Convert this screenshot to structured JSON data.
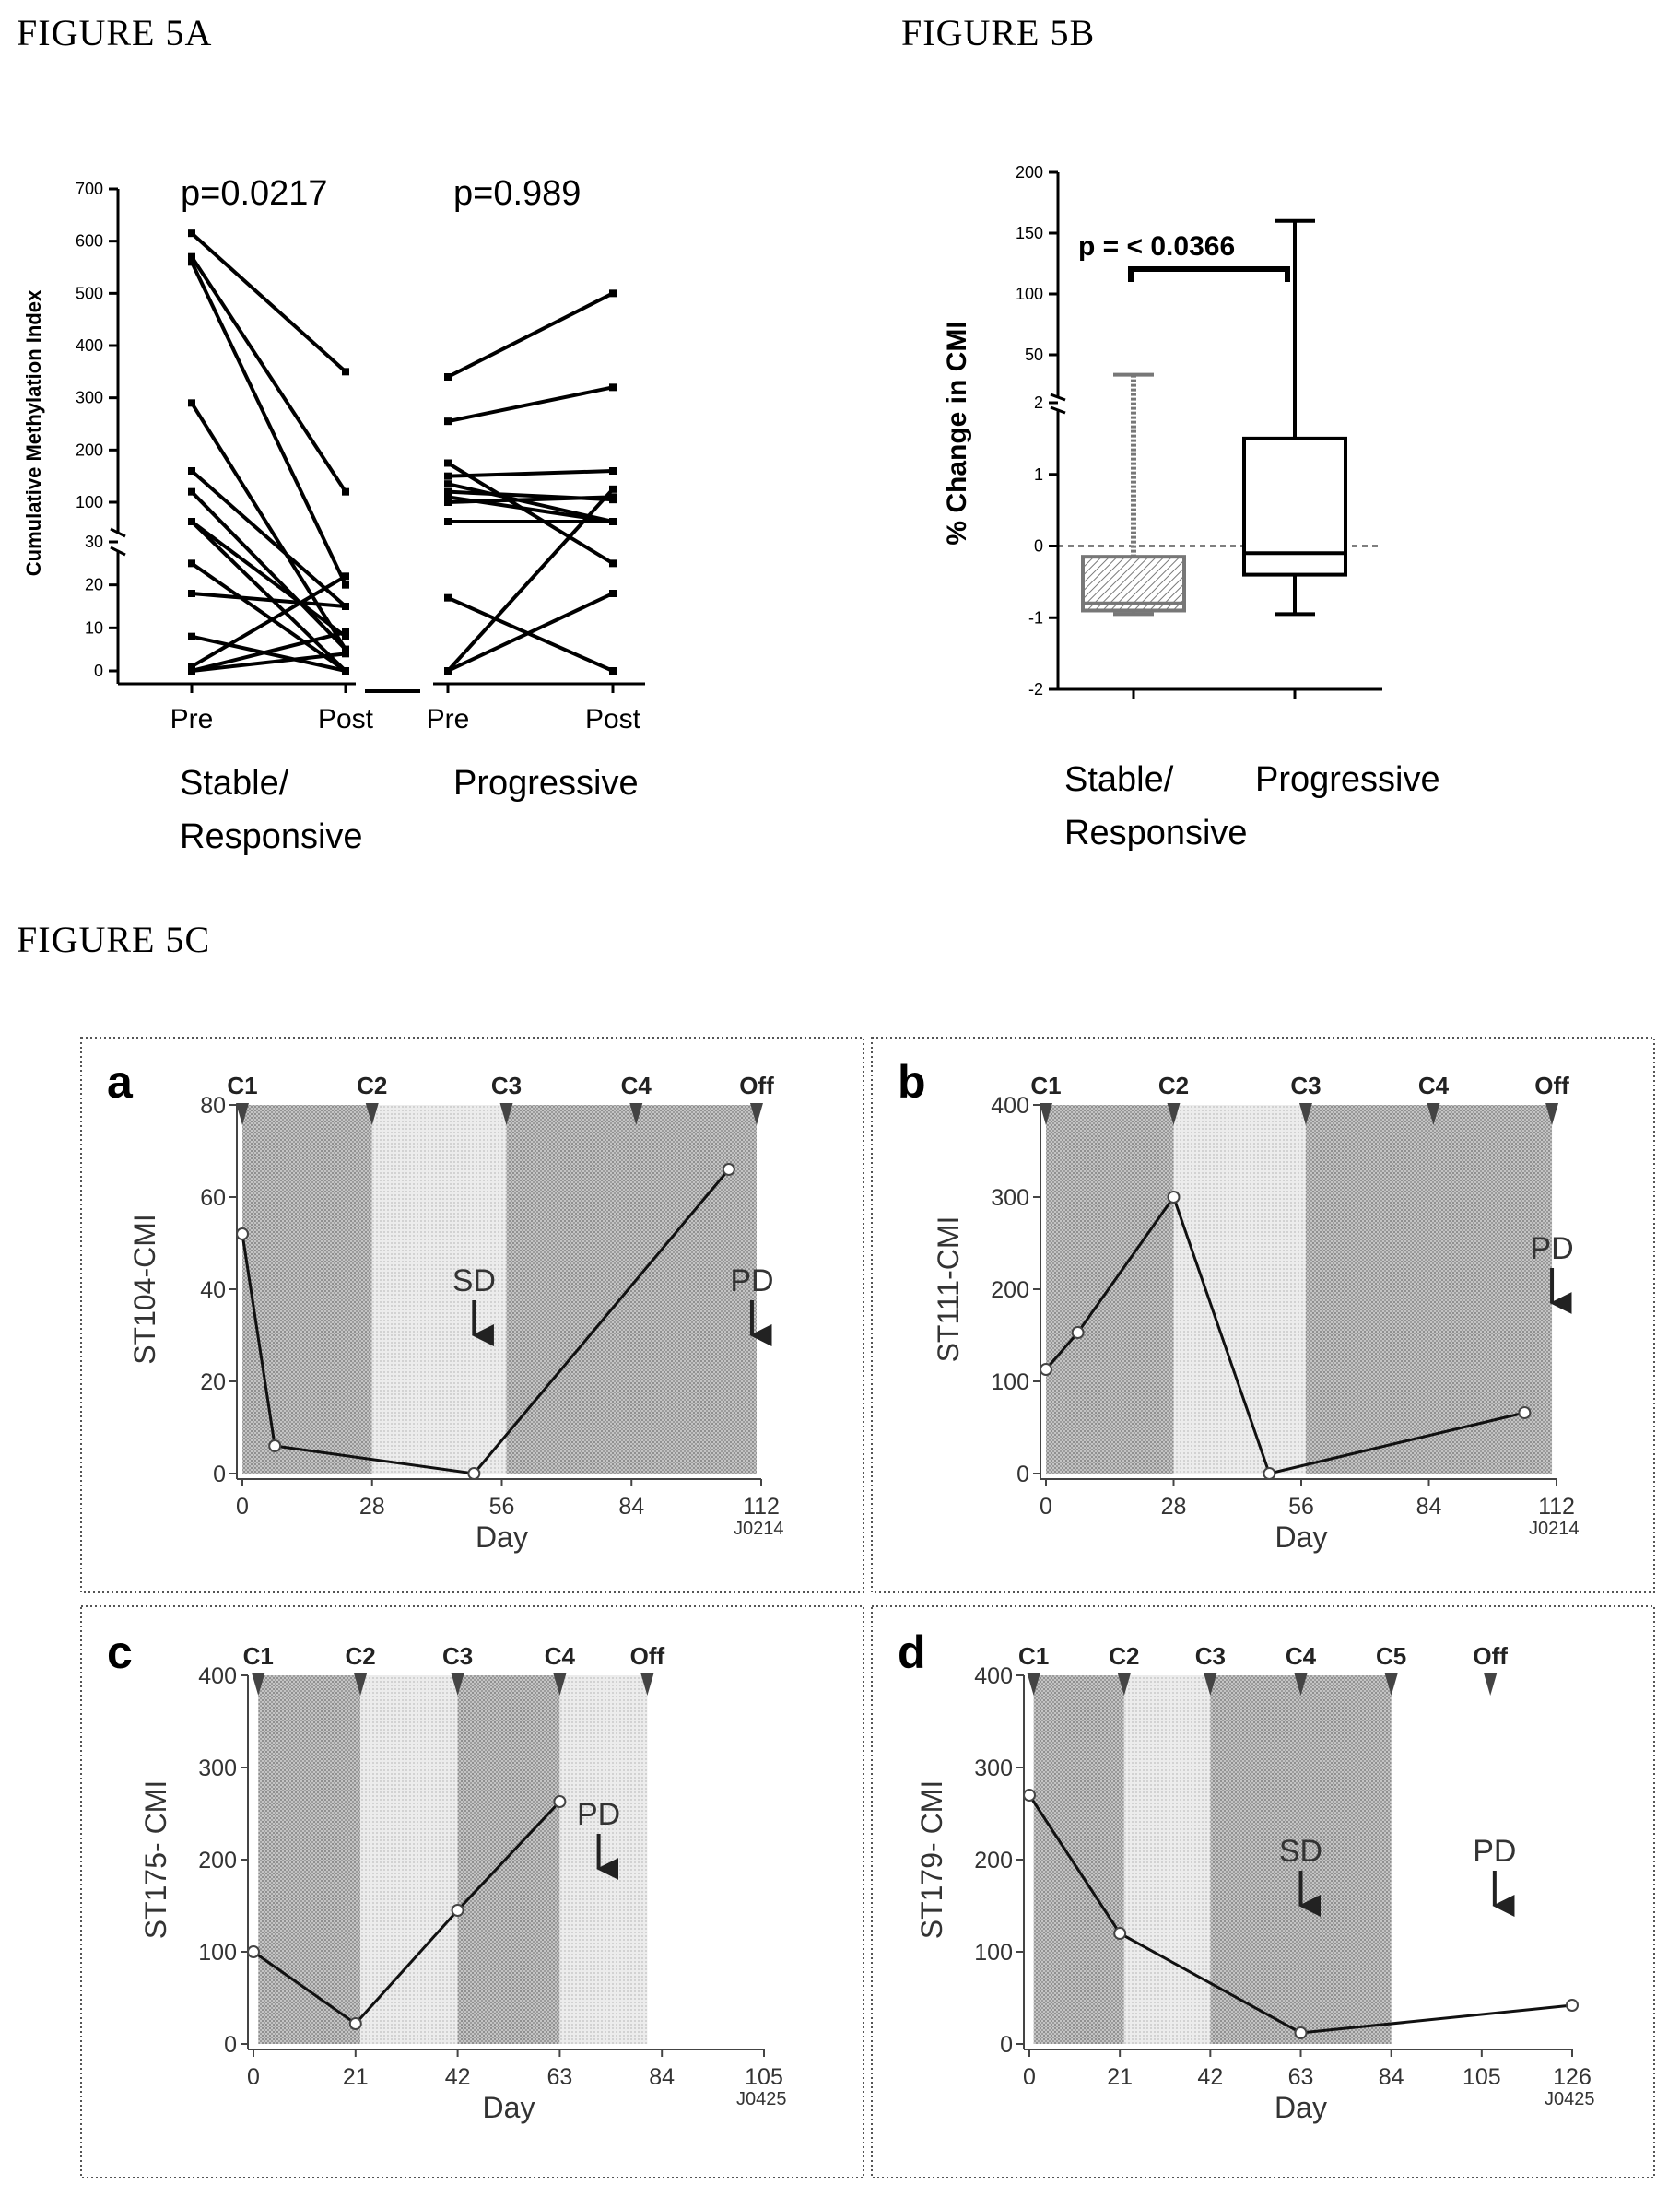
{
  "figure_labels": {
    "a": "FIGURE 5A",
    "b": "FIGURE 5B",
    "c": "FIGURE 5C"
  },
  "chart_data": [
    {
      "id": "fig5a",
      "type": "line",
      "ylabel": "Cumulative Methylation Index",
      "axis_break": "between 30 and 100 (lower segment 0-30, upper segment 100-700)",
      "y_ticks": [
        "0",
        "10",
        "20",
        "30",
        "100",
        "200",
        "300",
        "400",
        "500",
        "600",
        "700"
      ],
      "x_tick_labels": [
        "Pre",
        "Post",
        "Pre",
        "Post"
      ],
      "group_labels": [
        [
          "Stable/",
          "Responsive"
        ],
        [
          "Progressive"
        ]
      ],
      "pvalues": [
        "p=0.0217",
        "p=0.989"
      ],
      "groups": [
        {
          "name": "Stable/Responsive",
          "pairs": [
            [
              615,
              350
            ],
            [
              570,
              120
            ],
            [
              560,
              20
            ],
            [
              290,
              5
            ],
            [
              160,
              15
            ],
            [
              120,
              5
            ],
            [
              55,
              0
            ],
            [
              45,
              8
            ],
            [
              25,
              0
            ],
            [
              18,
              15
            ],
            [
              8,
              0
            ],
            [
              1,
              22
            ],
            [
              0,
              9
            ],
            [
              0,
              4
            ]
          ]
        },
        {
          "name": "Progressive",
          "pairs": [
            [
              340,
              500
            ],
            [
              255,
              320
            ],
            [
              175,
              25
            ],
            [
              150,
              160
            ],
            [
              135,
              90
            ],
            [
              120,
              105
            ],
            [
              110,
              80
            ],
            [
              100,
              110
            ],
            [
              95,
              60
            ],
            [
              85,
              55
            ],
            [
              75,
              65
            ],
            [
              17,
              0
            ],
            [
              0,
              125
            ],
            [
              0,
              18
            ]
          ]
        }
      ]
    },
    {
      "id": "fig5b",
      "type": "box",
      "ylabel": "% Change in CMI",
      "y_ticks": [
        "-2",
        "-1",
        "0",
        "1",
        "2",
        "50",
        "100",
        "150",
        "200"
      ],
      "axis_break": "between 2 and 50",
      "categories": [
        [
          "Stable/",
          "Responsive"
        ],
        [
          "Progressive"
        ]
      ],
      "pvalue": "p = < 0.0366",
      "boxes": [
        {
          "name": "Stable/Responsive",
          "min": -0.95,
          "q1": -0.9,
          "median": -0.8,
          "q3": -0.15,
          "max": 30,
          "hatched": true
        },
        {
          "name": "Progressive",
          "min": -0.95,
          "q1": -0.4,
          "median": -0.1,
          "q3": 1.5,
          "max": 160,
          "hatched": false
        }
      ]
    },
    {
      "id": "fig5c-a",
      "type": "line",
      "panel_letter": "a",
      "ylabel": "ST104-CMI",
      "xlabel": "Day",
      "code": "J0214",
      "xlim": [
        0,
        112
      ],
      "ylim": [
        0,
        80
      ],
      "x_ticks": [
        "0",
        "28",
        "56",
        "84",
        "112"
      ],
      "y_ticks": [
        "0",
        "20",
        "40",
        "60",
        "80"
      ],
      "cycles": [
        {
          "label": "C1",
          "day": 0
        },
        {
          "label": "C2",
          "day": 28
        },
        {
          "label": "C3",
          "day": 57
        },
        {
          "label": "C4",
          "day": 85
        },
        {
          "label": "Off",
          "day": 111
        }
      ],
      "bands": [
        [
          0,
          28,
          "dark"
        ],
        [
          28,
          57,
          "light"
        ],
        [
          57,
          111,
          "dark"
        ]
      ],
      "points": [
        [
          0,
          52
        ],
        [
          7,
          6
        ],
        [
          50,
          0
        ],
        [
          105,
          66
        ]
      ],
      "events": [
        {
          "label": "SD",
          "day": 50,
          "y": 30
        },
        {
          "label": "PD",
          "day": 110,
          "y": 30
        }
      ]
    },
    {
      "id": "fig5c-b",
      "type": "line",
      "panel_letter": "b",
      "ylabel": "ST111-CMI",
      "xlabel": "Day",
      "code": "J0214",
      "xlim": [
        0,
        112
      ],
      "ylim": [
        0,
        400
      ],
      "x_ticks": [
        "0",
        "28",
        "56",
        "84",
        "112"
      ],
      "y_ticks": [
        "0",
        "100",
        "200",
        "300",
        "400"
      ],
      "cycles": [
        {
          "label": "C1",
          "day": 0
        },
        {
          "label": "C2",
          "day": 28
        },
        {
          "label": "C3",
          "day": 57
        },
        {
          "label": "C4",
          "day": 85
        },
        {
          "label": "Off",
          "day": 111
        }
      ],
      "bands": [
        [
          0,
          28,
          "dark"
        ],
        [
          28,
          57,
          "light"
        ],
        [
          57,
          111,
          "dark"
        ]
      ],
      "points": [
        [
          0,
          113
        ],
        [
          7,
          153
        ],
        [
          28,
          300
        ],
        [
          49,
          0
        ],
        [
          105,
          66
        ]
      ],
      "events": [
        {
          "label": "PD",
          "day": 111,
          "y": 185
        }
      ]
    },
    {
      "id": "fig5c-c",
      "type": "line",
      "panel_letter": "c",
      "ylabel": "ST175- CMI",
      "xlabel": "Day",
      "code": "J0425",
      "xlim": [
        0,
        105
      ],
      "ylim": [
        0,
        400
      ],
      "x_ticks": [
        "0",
        "21",
        "42",
        "63",
        "84",
        "105"
      ],
      "y_ticks": [
        "0",
        "100",
        "200",
        "300",
        "400"
      ],
      "cycles": [
        {
          "label": "C1",
          "day": 1
        },
        {
          "label": "C2",
          "day": 22
        },
        {
          "label": "C3",
          "day": 42
        },
        {
          "label": "C4",
          "day": 63
        },
        {
          "label": "Off",
          "day": 81
        }
      ],
      "bands": [
        [
          1,
          22,
          "dark"
        ],
        [
          22,
          42,
          "light"
        ],
        [
          42,
          63,
          "dark"
        ],
        [
          63,
          81,
          "light"
        ]
      ],
      "points": [
        [
          0,
          100
        ],
        [
          21,
          22
        ],
        [
          42,
          145
        ],
        [
          63,
          263
        ]
      ],
      "events": [
        {
          "label": "PD",
          "day": 71,
          "y": 190
        }
      ]
    },
    {
      "id": "fig5c-d",
      "type": "line",
      "panel_letter": "d",
      "ylabel": "ST179- CMI",
      "xlabel": "Day",
      "code": "J0425",
      "xlim": [
        0,
        126
      ],
      "ylim": [
        0,
        400
      ],
      "x_ticks": [
        "0",
        "21",
        "42",
        "63",
        "84",
        "105",
        "126"
      ],
      "y_ticks": [
        "0",
        "100",
        "200",
        "300",
        "400"
      ],
      "cycles": [
        {
          "label": "C1",
          "day": 1
        },
        {
          "label": "C2",
          "day": 22
        },
        {
          "label": "C3",
          "day": 42
        },
        {
          "label": "C4",
          "day": 63
        },
        {
          "label": "C5",
          "day": 84
        },
        {
          "label": "Off",
          "day": 107
        }
      ],
      "bands": [
        [
          1,
          22,
          "dark"
        ],
        [
          22,
          42,
          "light"
        ],
        [
          42,
          84,
          "dark"
        ]
      ],
      "points": [
        [
          0,
          270
        ],
        [
          21,
          120
        ],
        [
          63,
          12
        ],
        [
          126,
          42
        ]
      ],
      "events": [
        {
          "label": "SD",
          "day": 63,
          "y": 150
        },
        {
          "label": "PD",
          "day": 108,
          "y": 150
        }
      ]
    }
  ]
}
